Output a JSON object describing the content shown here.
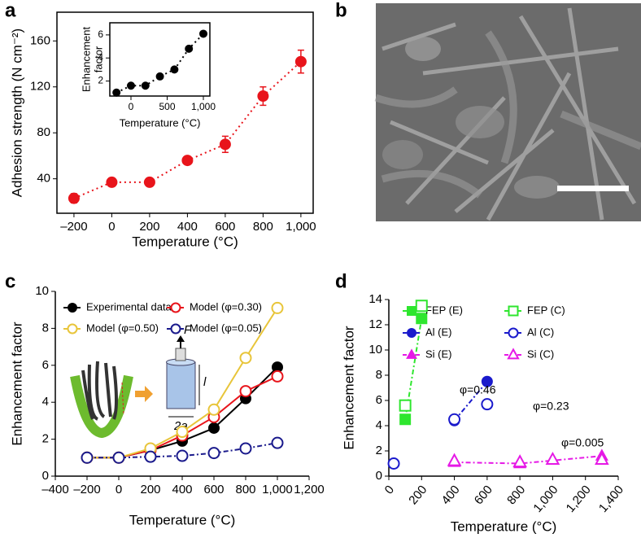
{
  "panel_labels": [
    "a",
    "b",
    "c",
    "d"
  ],
  "chart_data": [
    {
      "type": "line",
      "xlabel": "Temperature (°C)",
      "ylabel": "Adhesion strength (N cm⁻²)",
      "box": true,
      "x": [
        -200,
        0,
        200,
        400,
        600,
        800,
        1000
      ],
      "xlim": [
        -290,
        1065
      ],
      "ylim": [
        10,
        185
      ],
      "xticks": [
        {
          "value": -200,
          "label": "–200"
        },
        0,
        200,
        400,
        600,
        800,
        {
          "value": 1000,
          "label": "1,000"
        }
      ],
      "yticks": [
        40,
        80,
        120,
        160
      ],
      "series": [
        {
          "color": "#e8141b",
          "marker": "circle",
          "filled": true,
          "line_style": "dotted",
          "values": [
            23,
            37,
            37,
            56,
            70,
            112,
            142
          ],
          "errors": [
            4,
            3,
            3,
            3,
            7,
            8,
            10
          ]
        }
      ]
    },
    {
      "type": "line",
      "xlabel": "Temperature (°C)",
      "ylabel": [
        "Enhancement",
        "factor"
      ],
      "box": true,
      "x": [
        -200,
        0,
        200,
        400,
        600,
        800,
        1000
      ],
      "xlim": [
        -292,
        1090
      ],
      "ylim": [
        0.7,
        7.05
      ],
      "xticks": [
        0,
        500,
        {
          "value": 1000,
          "label": "1,000"
        }
      ],
      "yticks": [
        2,
        4,
        6
      ],
      "series": [
        {
          "color": "#000000",
          "marker": "circle",
          "filled": true,
          "line_style": "dotted",
          "values": [
            1,
            1.6,
            1.6,
            2.4,
            3.0,
            4.8,
            6.1
          ]
        }
      ]
    },
    {
      "type": "line",
      "xlabel": "Temperature (°C)",
      "ylabel": "Enhancement factor",
      "box": false,
      "legend": true,
      "x": [
        -200,
        0,
        200,
        400,
        600,
        800,
        1000
      ],
      "xlim": [
        -400,
        1200
      ],
      "ylim": [
        0,
        10
      ],
      "xticks": [
        {
          "value": -400,
          "label": "–400"
        },
        {
          "value": -200,
          "label": "–200"
        },
        0,
        200,
        400,
        600,
        800,
        {
          "value": 1000,
          "label": "1,000"
        },
        {
          "value": 1200,
          "label": "1,200"
        }
      ],
      "yticks": [
        0,
        2,
        4,
        6,
        8,
        10
      ],
      "diagram_labels": [
        "F",
        "l",
        "2a"
      ],
      "series": [
        {
          "name": "Experimental data",
          "color": "#000000",
          "marker": "circle",
          "filled": true,
          "line_style": "solid",
          "values": [
            1,
            1,
            1.4,
            1.9,
            2.6,
            4.2,
            5.9
          ]
        },
        {
          "name": "Model (φ=0.30)",
          "color": "#e8141b",
          "marker": "circle",
          "filled": false,
          "line_style": "solid",
          "values": [
            1,
            1,
            1.4,
            2.2,
            3.2,
            4.6,
            5.4
          ]
        },
        {
          "name": "Model (φ=0.50)",
          "color": "#e8c53a",
          "marker": "circle",
          "filled": false,
          "line_style": "solid",
          "values": [
            1,
            1,
            1.5,
            2.4,
            3.6,
            6.4,
            9.1
          ]
        },
        {
          "name": "Model (φ=0.05)",
          "color": "#1a1a8c",
          "marker": "circle",
          "filled": false,
          "line_style": "dashdot",
          "values": [
            1,
            1,
            1.05,
            1.1,
            1.25,
            1.5,
            1.8
          ]
        }
      ]
    },
    {
      "type": "scatter",
      "xlabel": "Temperature (°C)",
      "ylabel": "Enhancement factor",
      "box": false,
      "legend": true,
      "xlim": [
        0,
        1400
      ],
      "ylim": [
        0,
        14
      ],
      "xticks": [
        0,
        200,
        400,
        600,
        800,
        {
          "value": 1000,
          "label": "1,000"
        },
        {
          "value": 1200,
          "label": "1,200"
        },
        {
          "value": 1400,
          "label": "1,400"
        }
      ],
      "yticks": [
        0,
        2,
        4,
        6,
        8,
        10,
        12,
        14
      ],
      "annotations": [
        "φ=0.46",
        "φ=0.23",
        "φ=0.005"
      ],
      "series": [
        {
          "name": "FEP (E)",
          "color": "#2ee62e",
          "marker": "square",
          "filled": true,
          "line_style": "dashdot",
          "x": [
            100,
            200
          ],
          "values": [
            4.5,
            12.5
          ]
        },
        {
          "name": "FEP (C)",
          "color": "#2ee62e",
          "marker": "square",
          "filled": false,
          "line_style": "none",
          "x": [
            100,
            200
          ],
          "values": [
            5.6,
            13.5
          ]
        },
        {
          "name": "Al (E)",
          "color": "#1a1acc",
          "marker": "circle",
          "filled": true,
          "line_style": "dashdot",
          "x": [
            400,
            600
          ],
          "values": [
            4.4,
            7.5
          ]
        },
        {
          "name": "Al (C)",
          "color": "#1a1acc",
          "marker": "circle",
          "filled": false,
          "line_style": "none",
          "x": [
            30,
            400,
            600
          ],
          "values": [
            1.0,
            4.5,
            5.7
          ]
        },
        {
          "name": "Si (E)",
          "color": "#e619e6",
          "marker": "triangle",
          "filled": true,
          "line_style": "dashdot",
          "x": [
            400,
            800,
            1300
          ],
          "values": [
            1.1,
            1.0,
            1.6
          ]
        },
        {
          "name": "Si (C)",
          "color": "#e619e6",
          "marker": "triangle",
          "filled": false,
          "line_style": "none",
          "x": [
            400,
            800,
            1000,
            1300
          ],
          "values": [
            1.2,
            1.1,
            1.3,
            1.3
          ]
        }
      ]
    }
  ]
}
